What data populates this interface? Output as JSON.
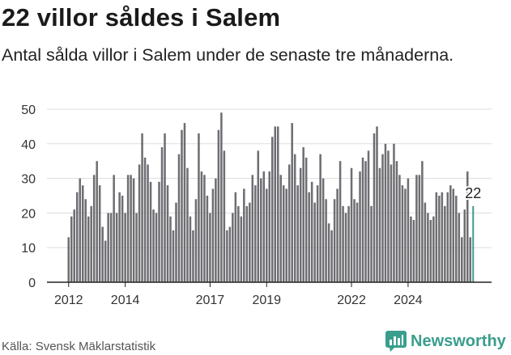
{
  "title": "22 villor såldes i Salem",
  "subtitle": "Antal sålda villor i Salem under de senaste tre månaderna.",
  "source": "Källa: Svensk Mäklarstatistik",
  "brand": "Newsworthy",
  "colors": {
    "bar": "#6e6d72",
    "highlight": "#3a9e8c",
    "grid": "#dddddd",
    "axis": "#222222",
    "brand": "#3a9e8c"
  },
  "chart_data": {
    "type": "bar",
    "title": "22 villor såldes i Salem",
    "xlabel": "",
    "ylabel": "",
    "ylim": [
      0,
      50
    ],
    "yticks": [
      0,
      10,
      20,
      30,
      40,
      50
    ],
    "xticks": [
      {
        "label": "2012",
        "index": 0
      },
      {
        "label": "2014",
        "index": 20
      },
      {
        "label": "2017",
        "index": 50
      },
      {
        "label": "2019",
        "index": 70
      },
      {
        "label": "2022",
        "index": 100
      },
      {
        "label": "2024",
        "index": 120
      }
    ],
    "start": "2012-01",
    "values": [
      13,
      19,
      21,
      26,
      30,
      28,
      24,
      19,
      22,
      31,
      35,
      28,
      16,
      12,
      20,
      20,
      31,
      20,
      26,
      25,
      20,
      31,
      31,
      30,
      20,
      34,
      43,
      36,
      34,
      29,
      21,
      20,
      29,
      39,
      43,
      28,
      19,
      15,
      23,
      37,
      44,
      46,
      33,
      19,
      15,
      24,
      43,
      32,
      31,
      25,
      20,
      27,
      30,
      44,
      49,
      38,
      15,
      16,
      20,
      26,
      22,
      19,
      27,
      22,
      23,
      31,
      28,
      38,
      30,
      32,
      27,
      32,
      42,
      45,
      45,
      31,
      28,
      27,
      34,
      46,
      37,
      28,
      33,
      39,
      36,
      26,
      29,
      23,
      28,
      37,
      30,
      24,
      17,
      15,
      24,
      27,
      35,
      22,
      20,
      22,
      33,
      24,
      23,
      32,
      36,
      35,
      38,
      22,
      43,
      45,
      33,
      37,
      40,
      38,
      34,
      40,
      35,
      31,
      28,
      27,
      30,
      19,
      18,
      31,
      31,
      35,
      23,
      20,
      18,
      19,
      26,
      25,
      26,
      22,
      26,
      28,
      27,
      25,
      20,
      13,
      21,
      32,
      13,
      22
    ],
    "annotation": {
      "label": "22",
      "value": 22
    }
  }
}
